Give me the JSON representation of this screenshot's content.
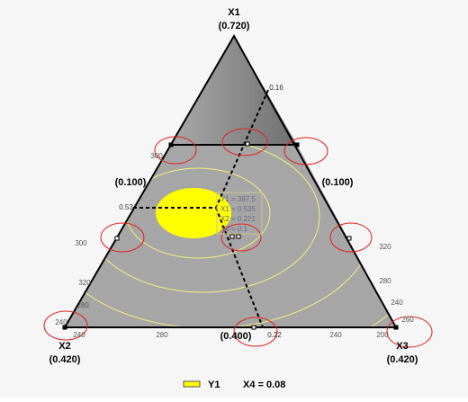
{
  "chart_data": {
    "type": "ternary",
    "vertices": [
      {
        "name": "X1",
        "range": "(0.720)"
      },
      {
        "name": "X2",
        "range": "(0.420)"
      },
      {
        "name": "X3",
        "range": "(0.420)"
      }
    ],
    "edge_labels": [
      "(0.100)",
      "(0.100)",
      "(0.400)"
    ],
    "axis_marks": [
      "0.16",
      "0.53",
      "0.22"
    ],
    "contour_labels": [
      300,
      300,
      320,
      280,
      240,
      240,
      280,
      240,
      200,
      320,
      280,
      240,
      260
    ],
    "tooltip": [
      "Y1 = 397.5",
      "X1 = 0.535",
      "X2 = 0.221",
      "X3 = 0.1"
    ],
    "legend": {
      "name": "Y1",
      "color": "#ffff00",
      "note": "X4 = 0.08"
    }
  }
}
